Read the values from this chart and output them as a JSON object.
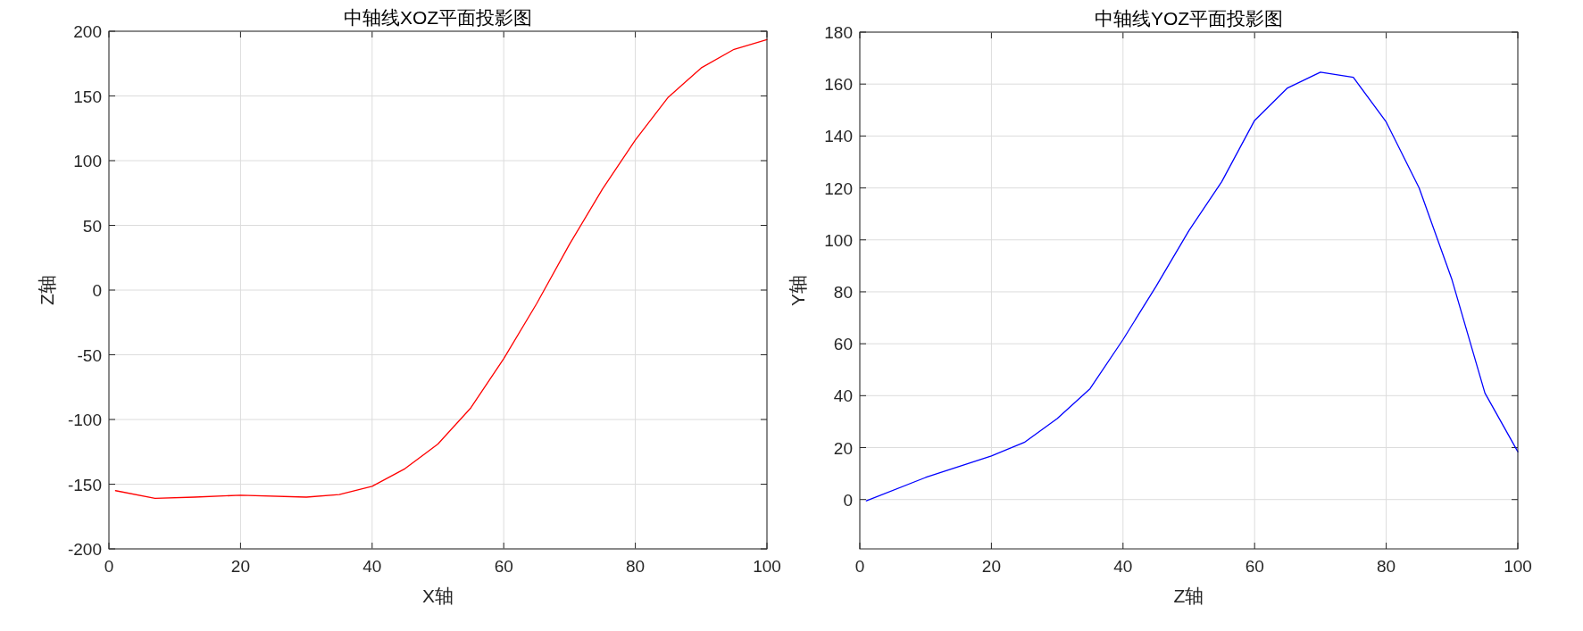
{
  "chart_data": [
    {
      "type": "line",
      "title": "中轴线XOZ平面投影图",
      "xlabel": "X轴",
      "ylabel": "Z轴",
      "xlim": [
        0,
        100
      ],
      "xticks": [
        0,
        20,
        40,
        60,
        80,
        100
      ],
      "ylim": [
        -200,
        200
      ],
      "yticks": [
        -200,
        -150,
        -100,
        -50,
        0,
        50,
        100,
        150,
        200
      ],
      "grid": true,
      "marker": "none",
      "line_style": "solid",
      "series": [
        {
          "color": "#ff0000",
          "x": [
            1,
            7,
            13,
            20,
            30,
            35,
            40,
            45,
            50,
            55,
            60,
            65,
            70,
            75,
            80,
            85,
            90,
            95,
            100
          ],
          "values": [
            -155,
            -161,
            -160,
            -158.5,
            -160,
            -158,
            -151.6,
            -138,
            -119,
            -91,
            -53,
            -10.5,
            35.4,
            78,
            116,
            149,
            171.6,
            186,
            193.6
          ]
        }
      ]
    },
    {
      "type": "line",
      "title": "中轴线YOZ平面投影图",
      "xlabel": "Z轴",
      "ylabel": "Y轴",
      "xlim": [
        0,
        100
      ],
      "xticks": [
        0,
        20,
        40,
        60,
        80,
        100
      ],
      "ylim": [
        -19,
        180
      ],
      "yticks": [
        0,
        20,
        40,
        60,
        80,
        100,
        120,
        140,
        160,
        180
      ],
      "grid": true,
      "marker": "none",
      "line_style": "solid",
      "series": [
        {
          "color": "#0000ff",
          "x": [
            1,
            10,
            20,
            25,
            30,
            35,
            40,
            45,
            50,
            55,
            60,
            65,
            70,
            75,
            80,
            85,
            90,
            95,
            100
          ],
          "values": [
            -0.5,
            8.5,
            16.8,
            22,
            31.2,
            42.7,
            61.6,
            82,
            103.5,
            122.4,
            146,
            158.5,
            164.6,
            162.6,
            145.4,
            120,
            84.6,
            41,
            18.4
          ]
        }
      ]
    }
  ]
}
